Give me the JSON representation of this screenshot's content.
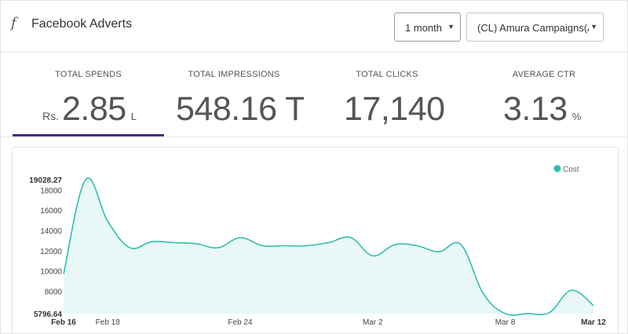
{
  "header": {
    "icon": "facebook-f-icon",
    "title": "Facebook Adverts",
    "period_select": "1 month",
    "campaign_select": "(CL) Amura Campaigns(A..."
  },
  "metrics": [
    {
      "label": "TOTAL SPENDS",
      "prefix": "Rs.",
      "value": "2.85",
      "suffix": "L"
    },
    {
      "label": "TOTAL IMPRESSIONS",
      "prefix": "",
      "value": "548.16 Th",
      "suffix": ""
    },
    {
      "label": "TOTAL CLICKS",
      "prefix": "",
      "value": "17,140",
      "suffix": ""
    },
    {
      "label": "AVERAGE CTR",
      "prefix": "",
      "value": "3.13",
      "suffix": "%"
    }
  ],
  "colors": {
    "accent": "#4b2a86",
    "series": "#2ebfb0",
    "area": "#e9f7f6"
  },
  "chart_data": {
    "type": "area",
    "legend": [
      "Cost"
    ],
    "legend_position": "top-right",
    "ylim": [
      5796.64,
      19028.27
    ],
    "y_ticks": [
      "19028.27",
      "18000",
      "16000",
      "14000",
      "12000",
      "10000",
      "8000",
      "5796.64"
    ],
    "x_ticks": [
      "Feb 16",
      "Feb 18",
      "Feb 24",
      "Mar 2",
      "Mar 8",
      "Mar 12"
    ],
    "series": [
      {
        "name": "Cost",
        "x": [
          "Feb 16",
          "Feb 17",
          "Feb 18",
          "Feb 19",
          "Feb 20",
          "Feb 21",
          "Feb 22",
          "Feb 23",
          "Feb 24",
          "Feb 25",
          "Feb 26",
          "Feb 27",
          "Feb 28",
          "Mar 1",
          "Mar 2",
          "Mar 3",
          "Mar 4",
          "Mar 5",
          "Mar 6",
          "Mar 7",
          "Mar 8",
          "Mar 9",
          "Mar 10",
          "Mar 11",
          "Mar 12"
        ],
        "values": [
          9700,
          19028,
          14900,
          12300,
          12900,
          12800,
          12700,
          12300,
          13300,
          12500,
          12500,
          12500,
          12800,
          13300,
          11500,
          12600,
          12500,
          11900,
          12600,
          7800,
          5800,
          5800,
          5900,
          8100,
          6600
        ]
      }
    ]
  }
}
